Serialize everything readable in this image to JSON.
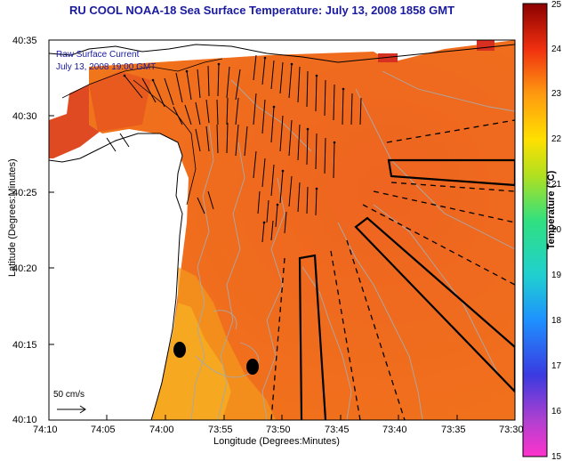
{
  "title": "RU COOL  NOAA-18  Sea Surface Temperature:  July 13, 2008 1858 GMT",
  "legend": {
    "line1": "Raw Surface Current",
    "line2": "July 13, 2008 19:00 GMT",
    "scale_label": "50 cm/s"
  },
  "axes": {
    "xlabel": "Longitude (Degrees:Minutes)",
    "ylabel": "Latitude (Degrees:Minutes)",
    "x_ticks": [
      "74:10",
      "74:05",
      "74:00",
      "73:55",
      "73:50",
      "73:45",
      "73:40",
      "73:35",
      "73:30"
    ],
    "y_ticks": [
      "40:35",
      "40:30",
      "40:25",
      "40:20",
      "40:15",
      "40:10"
    ]
  },
  "colorbar": {
    "label": "Temperature (°C)",
    "ticks": [
      "25",
      "24",
      "23",
      "22",
      "21",
      "20",
      "19",
      "18",
      "17",
      "16",
      "15"
    ],
    "min": 15,
    "max": 25
  },
  "colors": {
    "title": "#1a1aa0",
    "sst_main": "#f06a1e",
    "sst_warm": "#e03c22",
    "sst_cool": "#f5a018",
    "land": "#ffffff",
    "vectors": "#000000"
  }
}
